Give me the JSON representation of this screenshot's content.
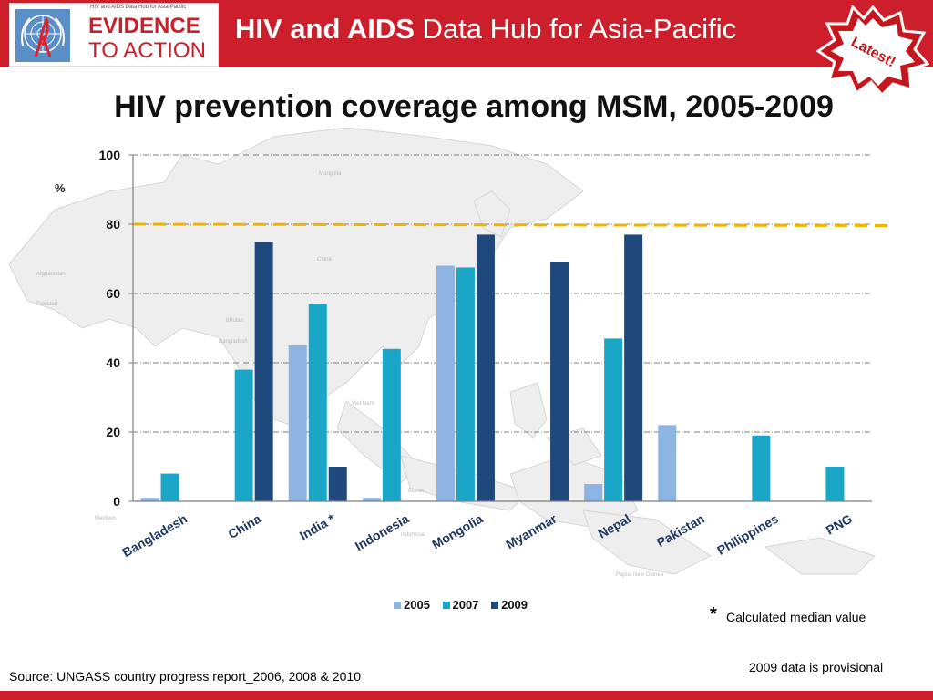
{
  "header": {
    "logo_tagline": "HIV and AIDS Data Hub for Asia-Pacific",
    "logo_line1": "EVIDENCE",
    "logo_line2": "TO ACTION",
    "hub_title_bold": "HIV and AIDS",
    "hub_title_rest": " Data Hub for Asia-Pacific",
    "badge_label": "Latest!",
    "accent_color": "#cc1f2b"
  },
  "slide": {
    "title": "HIV prevention coverage among  MSM, 2005-2009",
    "y_unit": "%",
    "footnote_star": "*",
    "footnote_text": "Calculated median value",
    "provisional_note": "2009 data is provisional",
    "source": "Source: UNGASS country progress report_2006, 2008 & 2010"
  },
  "map_labels": [
    "Mongolia",
    "China",
    "Afghanistan",
    "Pakistan",
    "Bhutan",
    "Bangladesh",
    "Viet Nam",
    "Brunei",
    "Indonesia",
    "Papua New Guinea",
    "Maldives"
  ],
  "chart_data": {
    "type": "bar",
    "title": "HIV prevention coverage among  MSM, 2005-2009",
    "ylabel": "%",
    "ylim": [
      0,
      100
    ],
    "yticks": [
      0,
      20,
      40,
      60,
      80,
      100
    ],
    "grid": true,
    "legend_position": "bottom",
    "target_line": 80,
    "categories": [
      "Bangladesh",
      "China",
      "India *",
      "Indonesia",
      "Mongolia",
      "Myanmar",
      "Nepal",
      "Pakistan",
      "Philippines",
      "PNG"
    ],
    "series": [
      {
        "name": "2005",
        "color": "#8db4e2",
        "values": [
          1,
          null,
          45,
          1,
          68,
          null,
          5,
          22,
          null,
          null
        ]
      },
      {
        "name": "2007",
        "color": "#1aa6c6",
        "values": [
          8,
          38,
          57,
          44,
          67.5,
          null,
          47,
          null,
          19,
          10
        ]
      },
      {
        "name": "2009",
        "color": "#1f497d",
        "values": [
          null,
          75,
          10,
          null,
          77,
          69,
          77,
          null,
          null,
          null
        ]
      }
    ],
    "target_color": "#f0b400"
  }
}
